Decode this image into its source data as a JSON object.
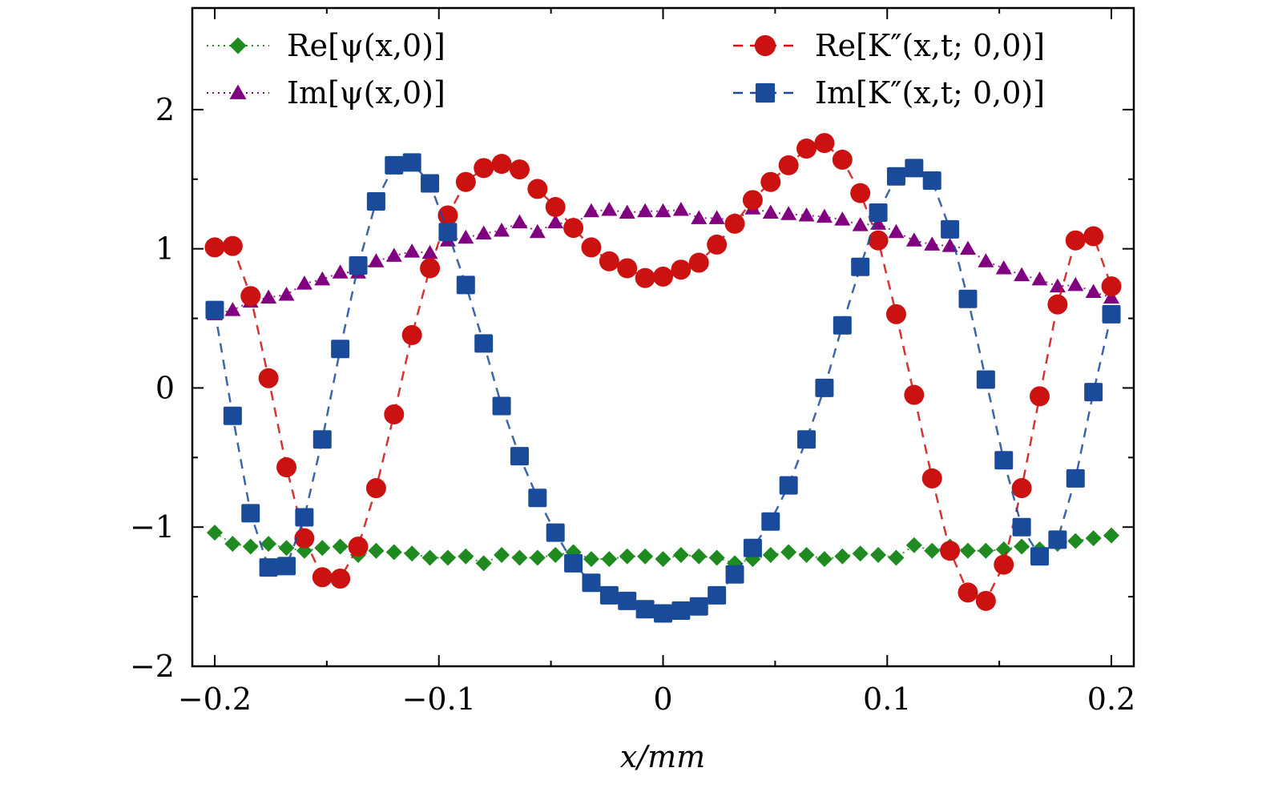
{
  "chart_data": {
    "type": "line",
    "title": "",
    "xlabel": "x/mm",
    "ylabel": "",
    "xlim": [
      -0.21,
      0.21
    ],
    "ylim": [
      -2,
      2.73
    ],
    "x_ticks": [
      -0.2,
      -0.1,
      0,
      0.1,
      0.2
    ],
    "x_tick_labels": [
      "−0.2",
      "−0.1",
      "0",
      "0.1",
      "0.2"
    ],
    "y_ticks": [
      -2,
      -1,
      0,
      1,
      2
    ],
    "y_tick_labels": [
      "−2",
      "−1",
      "0",
      "1",
      "2"
    ],
    "grid": false,
    "legend_placement": "top",
    "series": [
      {
        "name": "Re[ψ(x,0)]",
        "color": "#1f8a1f",
        "marker": "diamond",
        "linestyle": "dotted",
        "x": [
          -0.2,
          -0.192,
          -0.184,
          -0.176,
          -0.168,
          -0.16,
          -0.152,
          -0.144,
          -0.136,
          -0.128,
          -0.12,
          -0.112,
          -0.104,
          -0.096,
          -0.088,
          -0.08,
          -0.072,
          -0.064,
          -0.056,
          -0.048,
          -0.04,
          -0.032,
          -0.024,
          -0.016,
          -0.008,
          0,
          0.008,
          0.016,
          0.024,
          0.032,
          0.04,
          0.048,
          0.056,
          0.064,
          0.072,
          0.08,
          0.088,
          0.096,
          0.104,
          0.112,
          0.12,
          0.128,
          0.136,
          0.144,
          0.152,
          0.16,
          0.168,
          0.176,
          0.184,
          0.192,
          0.2
        ],
        "y": [
          -1.04,
          -1.12,
          -1.14,
          -1.12,
          -1.15,
          -1.17,
          -1.15,
          -1.14,
          -1.2,
          -1.17,
          -1.18,
          -1.19,
          -1.22,
          -1.22,
          -1.21,
          -1.26,
          -1.2,
          -1.22,
          -1.22,
          -1.2,
          -1.18,
          -1.23,
          -1.23,
          -1.21,
          -1.21,
          -1.23,
          -1.2,
          -1.21,
          -1.22,
          -1.26,
          -1.23,
          -1.2,
          -1.18,
          -1.2,
          -1.23,
          -1.21,
          -1.19,
          -1.2,
          -1.22,
          -1.13,
          -1.17,
          -1.14,
          -1.17,
          -1.17,
          -1.16,
          -1.14,
          -1.16,
          -1.12,
          -1.1,
          -1.08,
          -1.06
        ]
      },
      {
        "name": "Im[ψ(x,0)]",
        "color": "#800080",
        "marker": "triangle",
        "linestyle": "dotted",
        "x": [
          -0.2,
          -0.192,
          -0.184,
          -0.176,
          -0.168,
          -0.16,
          -0.152,
          -0.144,
          -0.136,
          -0.128,
          -0.12,
          -0.112,
          -0.104,
          -0.096,
          -0.088,
          -0.08,
          -0.072,
          -0.064,
          -0.056,
          -0.048,
          -0.04,
          -0.032,
          -0.024,
          -0.016,
          -0.008,
          0,
          0.008,
          0.016,
          0.024,
          0.032,
          0.04,
          0.048,
          0.056,
          0.064,
          0.072,
          0.08,
          0.088,
          0.096,
          0.104,
          0.112,
          0.12,
          0.128,
          0.136,
          0.144,
          0.152,
          0.16,
          0.168,
          0.176,
          0.184,
          0.192,
          0.2
        ],
        "y": [
          0.53,
          0.56,
          0.62,
          0.65,
          0.67,
          0.75,
          0.78,
          0.83,
          0.83,
          0.91,
          0.95,
          0.98,
          0.97,
          1.06,
          1.08,
          1.11,
          1.13,
          1.19,
          1.12,
          1.19,
          1.17,
          1.27,
          1.28,
          1.26,
          1.27,
          1.27,
          1.28,
          1.22,
          1.22,
          1.2,
          1.29,
          1.26,
          1.25,
          1.24,
          1.23,
          1.21,
          1.17,
          1.18,
          1.12,
          1.06,
          1.03,
          1.02,
          1.0,
          0.91,
          0.86,
          0.81,
          0.78,
          0.73,
          0.74,
          0.69,
          0.65
        ]
      },
      {
        "name": "Re[K″(x,t; 0,0)]",
        "color": "#cc1111",
        "marker": "circle",
        "linestyle": "dashed",
        "x": [
          -0.2,
          -0.192,
          -0.184,
          -0.176,
          -0.168,
          -0.16,
          -0.152,
          -0.144,
          -0.136,
          -0.128,
          -0.12,
          -0.112,
          -0.104,
          -0.096,
          -0.088,
          -0.08,
          -0.072,
          -0.064,
          -0.056,
          -0.048,
          -0.04,
          -0.032,
          -0.024,
          -0.016,
          -0.008,
          0,
          0.008,
          0.016,
          0.024,
          0.032,
          0.04,
          0.048,
          0.056,
          0.064,
          0.072,
          0.08,
          0.088,
          0.096,
          0.104,
          0.112,
          0.12,
          0.128,
          0.136,
          0.144,
          0.152,
          0.16,
          0.168,
          0.176,
          0.184,
          0.192,
          0.2
        ],
        "y": [
          1.01,
          1.02,
          0.66,
          0.07,
          -0.57,
          -1.08,
          -1.36,
          -1.37,
          -1.14,
          -0.72,
          -0.19,
          0.38,
          0.86,
          1.24,
          1.48,
          1.58,
          1.61,
          1.57,
          1.43,
          1.3,
          1.15,
          1.01,
          0.91,
          0.86,
          0.79,
          0.8,
          0.85,
          0.9,
          1.03,
          1.18,
          1.35,
          1.48,
          1.6,
          1.72,
          1.76,
          1.64,
          1.4,
          1.06,
          0.53,
          -0.05,
          -0.65,
          -1.17,
          -1.47,
          -1.53,
          -1.27,
          -0.72,
          -0.06,
          0.6,
          1.06,
          1.09,
          0.73
        ]
      },
      {
        "name": "Im[K″(x,t; 0,0)]",
        "color": "#1a4a9a",
        "marker": "square",
        "linestyle": "dashed",
        "x": [
          -0.2,
          -0.192,
          -0.184,
          -0.176,
          -0.168,
          -0.16,
          -0.152,
          -0.144,
          -0.136,
          -0.128,
          -0.12,
          -0.112,
          -0.104,
          -0.096,
          -0.088,
          -0.08,
          -0.072,
          -0.064,
          -0.056,
          -0.048,
          -0.04,
          -0.032,
          -0.024,
          -0.016,
          -0.008,
          0,
          0.008,
          0.016,
          0.024,
          0.032,
          0.04,
          0.048,
          0.056,
          0.064,
          0.072,
          0.08,
          0.088,
          0.096,
          0.104,
          0.112,
          0.12,
          0.128,
          0.136,
          0.144,
          0.152,
          0.16,
          0.168,
          0.176,
          0.184,
          0.192,
          0.2
        ],
        "y": [
          0.56,
          -0.2,
          -0.9,
          -1.29,
          -1.28,
          -0.93,
          -0.37,
          0.28,
          0.88,
          1.34,
          1.6,
          1.62,
          1.47,
          1.12,
          0.74,
          0.32,
          -0.13,
          -0.49,
          -0.79,
          -1.04,
          -1.26,
          -1.4,
          -1.49,
          -1.53,
          -1.59,
          -1.62,
          -1.6,
          -1.57,
          -1.49,
          -1.34,
          -1.15,
          -0.96,
          -0.7,
          -0.37,
          0.0,
          0.45,
          0.87,
          1.26,
          1.52,
          1.58,
          1.49,
          1.14,
          0.64,
          0.06,
          -0.52,
          -1.0,
          -1.21,
          -1.09,
          -0.65,
          -0.03,
          0.53
        ]
      }
    ]
  }
}
